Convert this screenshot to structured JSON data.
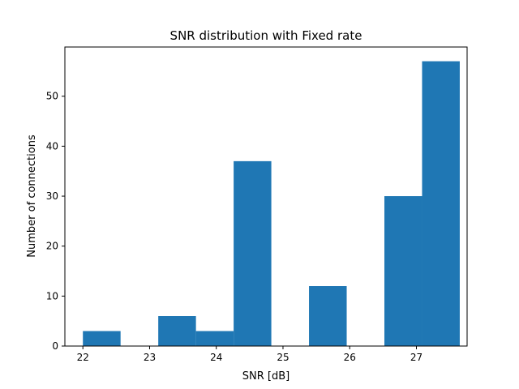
{
  "chart_data": {
    "type": "bar",
    "title": "SNR distribution with Fixed rate",
    "xlabel": "SNR [dB]",
    "ylabel": "Number of connections",
    "xlim": [
      21.73,
      27.76
    ],
    "ylim": [
      0,
      59.85
    ],
    "xticks": [
      22,
      23,
      24,
      25,
      26,
      27
    ],
    "yticks": [
      0,
      10,
      20,
      30,
      40,
      50
    ],
    "bins": [
      {
        "start": 22.0,
        "end": 22.565,
        "value": 3
      },
      {
        "start": 22.565,
        "end": 23.13,
        "value": 0
      },
      {
        "start": 23.13,
        "end": 23.695,
        "value": 6
      },
      {
        "start": 23.695,
        "end": 24.26,
        "value": 3
      },
      {
        "start": 24.26,
        "end": 24.825,
        "value": 37
      },
      {
        "start": 24.825,
        "end": 25.39,
        "value": 0
      },
      {
        "start": 25.39,
        "end": 25.955,
        "value": 12
      },
      {
        "start": 25.955,
        "end": 26.52,
        "value": 0
      },
      {
        "start": 26.52,
        "end": 27.085,
        "value": 30
      },
      {
        "start": 27.085,
        "end": 27.65,
        "value": 57
      }
    ],
    "bar_color": "#1f77b4",
    "grid": false,
    "legend": "none"
  }
}
